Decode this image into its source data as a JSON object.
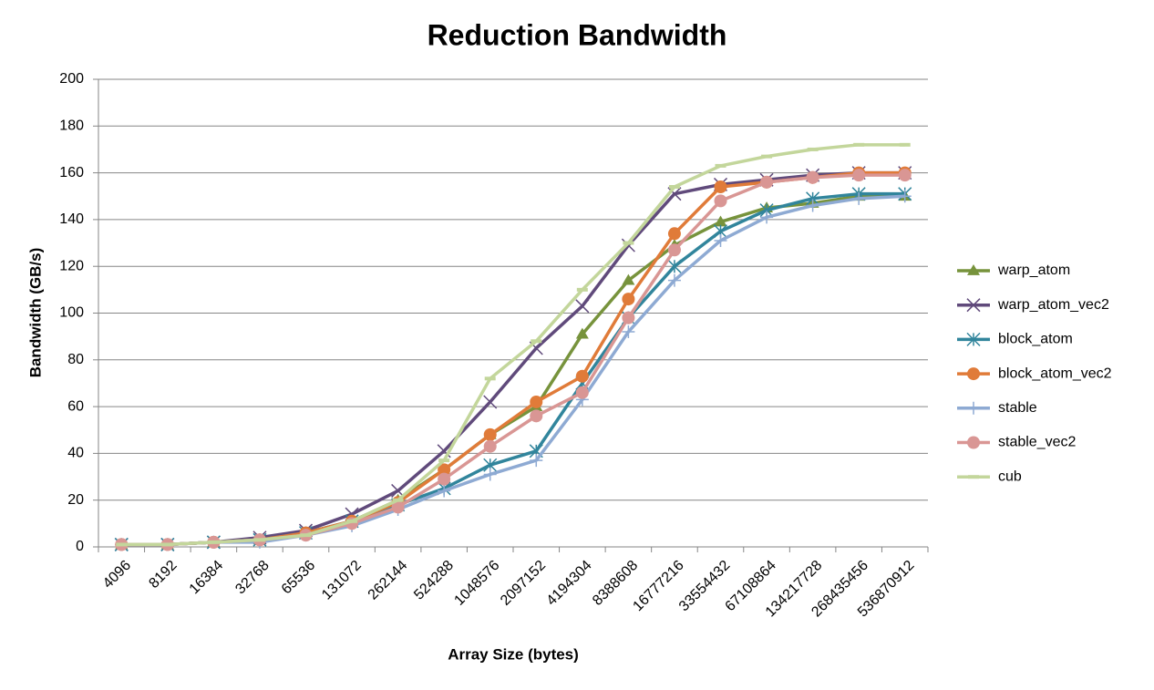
{
  "chart_data": {
    "type": "line",
    "title": "Reduction Bandwidth",
    "x_label": "Array Size (bytes)",
    "y_label": "Bandwidth (GB/s)",
    "categories": [
      "4096",
      "8192",
      "16384",
      "32768",
      "65536",
      "131072",
      "262144",
      "524288",
      "1048576",
      "2097152",
      "4194304",
      "8388608",
      "16777216",
      "33554432",
      "67108864",
      "134217728",
      "268435456",
      "536870912"
    ],
    "series": [
      {
        "name": "warp_atom",
        "color": "#77933c",
        "marker": "triangle",
        "values": [
          1,
          1,
          2,
          3,
          6,
          11,
          20,
          33,
          48,
          60,
          91,
          114,
          129,
          139,
          145,
          147,
          150,
          150
        ]
      },
      {
        "name": "warp_atom_vec2",
        "color": "#604a7b",
        "marker": "x",
        "values": [
          1,
          1,
          2,
          4,
          7,
          14,
          24,
          41,
          62,
          85,
          103,
          129,
          151,
          155,
          157,
          159,
          160,
          160
        ]
      },
      {
        "name": "block_atom",
        "color": "#31859c",
        "marker": "asterisk",
        "values": [
          1,
          1,
          2,
          3,
          6,
          11,
          18,
          25,
          35,
          41,
          70,
          98,
          120,
          135,
          144,
          149,
          151,
          151
        ]
      },
      {
        "name": "block_atom_vec2",
        "color": "#e07b39",
        "marker": "circle",
        "values": [
          1,
          1,
          2,
          3,
          6,
          11,
          19,
          33,
          48,
          62,
          73,
          106,
          134,
          154,
          156,
          158,
          160,
          160
        ]
      },
      {
        "name": "stable",
        "color": "#8eaad3",
        "marker": "plus",
        "values": [
          1,
          1,
          2,
          2,
          5,
          9,
          16,
          24,
          31,
          37,
          63,
          92,
          114,
          131,
          141,
          146,
          149,
          150
        ]
      },
      {
        "name": "stable_vec2",
        "color": "#d99694",
        "marker": "circle",
        "values": [
          1,
          1,
          2,
          3,
          5,
          10,
          17,
          29,
          43,
          56,
          66,
          98,
          127,
          148,
          156,
          158,
          159,
          159
        ]
      },
      {
        "name": "cub",
        "color": "#c3d69b",
        "marker": "dash",
        "values": [
          1,
          1,
          2,
          3,
          5,
          11,
          20,
          37,
          72,
          88,
          110,
          130,
          154,
          163,
          167,
          170,
          172,
          172
        ]
      }
    ],
    "ylim": [
      0,
      200
    ],
    "yticks": [
      0,
      20,
      40,
      60,
      80,
      100,
      120,
      140,
      160,
      180,
      200
    ],
    "grid": true,
    "legend": "right"
  }
}
